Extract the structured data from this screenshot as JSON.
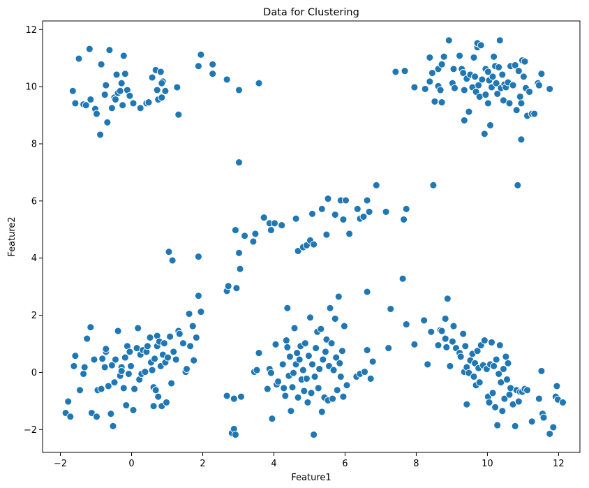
{
  "chart_data": {
    "type": "scatter",
    "title": "Data for Clustering",
    "xlabel": "Feature1",
    "ylabel": "Feature2",
    "xlim": [
      -2.5,
      12.6
    ],
    "ylim": [
      -2.8,
      12.3
    ],
    "xticks": [
      -2,
      0,
      2,
      4,
      6,
      8,
      10,
      12
    ],
    "yticks": [
      -2,
      0,
      2,
      4,
      6,
      8,
      10,
      12
    ],
    "xtick_labels": [
      "−2",
      "0",
      "2",
      "4",
      "6",
      "8",
      "10",
      "12"
    ],
    "ytick_labels": [
      "−2",
      "0",
      "2",
      "4",
      "6",
      "8",
      "10",
      "12"
    ],
    "grid": false,
    "legend": "none",
    "marker_color": "#1f77b4",
    "marker_edge_color": "#ffffff",
    "points": [
      [
        -1.65,
        9.85
      ],
      [
        -1.58,
        9.42
      ],
      [
        -1.48,
        10.98
      ],
      [
        -1.35,
        9.38
      ],
      [
        -1.28,
        9.35
      ],
      [
        -1.18,
        11.32
      ],
      [
        -1.15,
        9.55
      ],
      [
        -1.02,
        9.22
      ],
      [
        -0.98,
        9.05
      ],
      [
        -0.85,
        10.78
      ],
      [
        -0.88,
        8.32
      ],
      [
        -0.75,
        9.72
      ],
      [
        -0.72,
        10.05
      ],
      [
        -0.68,
        8.75
      ],
      [
        -0.62,
        11.28
      ],
      [
        -0.55,
        9.25
      ],
      [
        -0.48,
        9.62
      ],
      [
        -0.45,
        9.55
      ],
      [
        -0.42,
        10.42
      ],
      [
        -0.38,
        9.78
      ],
      [
        -0.32,
        9.85
      ],
      [
        -0.28,
        10.12
      ],
      [
        -0.22,
        11.08
      ],
      [
        -0.25,
        9.35
      ],
      [
        -0.18,
        10.45
      ],
      [
        -0.12,
        9.88
      ],
      [
        -0.05,
        9.68
      ],
      [
        0.05,
        9.42
      ],
      [
        0.25,
        9.25
      ],
      [
        0.42,
        9.42
      ],
      [
        0.48,
        9.45
      ],
      [
        0.58,
        10.32
      ],
      [
        0.68,
        10.58
      ],
      [
        0.72,
        9.88
      ],
      [
        0.75,
        9.55
      ],
      [
        0.82,
        10.52
      ],
      [
        0.85,
        9.62
      ],
      [
        0.88,
        10.18
      ],
      [
        0.95,
        9.85
      ],
      [
        0.85,
        10.12
      ],
      [
        1.28,
        9.98
      ],
      [
        1.32,
        9.02
      ],
      [
        1.88,
        10.72
      ],
      [
        1.95,
        11.12
      ],
      [
        2.28,
        10.78
      ],
      [
        2.28,
        10.45
      ],
      [
        2.68,
        10.25
      ],
      [
        3.02,
        9.88
      ],
      [
        3.58,
        10.12
      ],
      [
        3.02,
        7.35
      ],
      [
        7.42,
        10.52
      ],
      [
        7.68,
        10.55
      ],
      [
        7.95,
        9.98
      ],
      [
        8.25,
        9.92
      ],
      [
        8.38,
        10.18
      ],
      [
        8.45,
        10.48
      ],
      [
        8.52,
        9.48
      ],
      [
        8.62,
        10.02
      ],
      [
        8.68,
        9.88
      ],
      [
        8.72,
        9.45
      ],
      [
        8.38,
        11.02
      ],
      [
        8.62,
        10.62
      ],
      [
        8.72,
        10.78
      ],
      [
        8.78,
        11.05
      ],
      [
        8.92,
        11.62
      ],
      [
        9.02,
        10.12
      ],
      [
        9.05,
        10.62
      ],
      [
        9.08,
        9.95
      ],
      [
        9.22,
        11.08
      ],
      [
        9.28,
        10.62
      ],
      [
        9.32,
        10.48
      ],
      [
        9.35,
        8.82
      ],
      [
        9.35,
        9.88
      ],
      [
        9.42,
        10.28
      ],
      [
        9.48,
        9.12
      ],
      [
        9.52,
        10.42
      ],
      [
        9.58,
        9.98
      ],
      [
        9.62,
        11.02
      ],
      [
        9.65,
        10.35
      ],
      [
        9.68,
        9.82
      ],
      [
        9.72,
        11.38
      ],
      [
        9.72,
        11.52
      ],
      [
        9.75,
        10.05
      ],
      [
        9.78,
        9.65
      ],
      [
        9.82,
        11.45
      ],
      [
        9.85,
        10.25
      ],
      [
        9.92,
        8.35
      ],
      [
        9.95,
        10.62
      ],
      [
        9.95,
        9.72
      ],
      [
        10.02,
        10.52
      ],
      [
        10.02,
        9.42
      ],
      [
        10.05,
        10.22
      ],
      [
        10.08,
        8.65
      ],
      [
        10.12,
        9.98
      ],
      [
        10.15,
        10.35
      ],
      [
        10.18,
        11.05
      ],
      [
        10.22,
        10.72
      ],
      [
        10.25,
        10.12
      ],
      [
        10.28,
        9.75
      ],
      [
        10.32,
        10.68
      ],
      [
        10.35,
        11.62
      ],
      [
        10.38,
        9.95
      ],
      [
        10.42,
        10.42
      ],
      [
        10.45,
        9.52
      ],
      [
        10.48,
        10.08
      ],
      [
        10.52,
        9.98
      ],
      [
        10.58,
        10.15
      ],
      [
        10.62,
        9.42
      ],
      [
        10.65,
        10.72
      ],
      [
        10.72,
        10.05
      ],
      [
        10.78,
        10.75
      ],
      [
        10.82,
        9.18
      ],
      [
        10.88,
        10.55
      ],
      [
        10.92,
        9.65
      ],
      [
        10.95,
        9.42
      ],
      [
        10.98,
        10.92
      ],
      [
        11.02,
        10.35
      ],
      [
        11.05,
        10.88
      ],
      [
        11.08,
        9.95
      ],
      [
        11.12,
        8.98
      ],
      [
        11.18,
        9.82
      ],
      [
        11.25,
        9.05
      ],
      [
        11.32,
        9.05
      ],
      [
        11.42,
        10.12
      ],
      [
        11.45,
        10.05
      ],
      [
        11.52,
        10.45
      ],
      [
        11.75,
        9.92
      ],
      [
        10.95,
        8.15
      ],
      [
        10.85,
        6.55
      ],
      [
        8.48,
        6.55
      ],
      [
        1.05,
        4.22
      ],
      [
        1.15,
        3.92
      ],
      [
        1.88,
        4.05
      ],
      [
        2.68,
        2.85
      ],
      [
        2.72,
        3.02
      ],
      [
        2.92,
        4.98
      ],
      [
        3.02,
        4.18
      ],
      [
        3.05,
        3.62
      ],
      [
        3.18,
        4.78
      ],
      [
        3.42,
        4.58
      ],
      [
        3.48,
        4.85
      ],
      [
        3.72,
        5.42
      ],
      [
        3.88,
        5.22
      ],
      [
        3.92,
        4.98
      ],
      [
        4.02,
        5.22
      ],
      [
        4.22,
        5.15
      ],
      [
        4.62,
        5.38
      ],
      [
        4.68,
        4.25
      ],
      [
        4.82,
        4.38
      ],
      [
        4.92,
        4.45
      ],
      [
        5.02,
        4.62
      ],
      [
        5.12,
        4.48
      ],
      [
        5.08,
        5.55
      ],
      [
        5.35,
        5.72
      ],
      [
        5.48,
        4.82
      ],
      [
        5.52,
        6.08
      ],
      [
        5.72,
        5.52
      ],
      [
        5.88,
        6.02
      ],
      [
        5.95,
        5.35
      ],
      [
        6.02,
        6.02
      ],
      [
        6.12,
        4.85
      ],
      [
        6.35,
        5.72
      ],
      [
        6.42,
        5.38
      ],
      [
        6.52,
        5.45
      ],
      [
        6.62,
        6.02
      ],
      [
        6.68,
        5.62
      ],
      [
        6.88,
        6.55
      ],
      [
        7.15,
        5.62
      ],
      [
        7.65,
        5.35
      ],
      [
        7.72,
        5.72
      ],
      [
        -1.85,
        -1.42
      ],
      [
        -1.78,
        -1.02
      ],
      [
        -1.72,
        -1.55
      ],
      [
        -1.62,
        0.22
      ],
      [
        -1.58,
        0.58
      ],
      [
        -1.45,
        -0.62
      ],
      [
        -1.35,
        -0.05
      ],
      [
        -1.32,
        0.18
      ],
      [
        -1.25,
        1.18
      ],
      [
        -1.15,
        1.58
      ],
      [
        -1.12,
        -1.42
      ],
      [
        -1.05,
        0.45
      ],
      [
        -0.98,
        -1.55
      ],
      [
        -0.95,
        -0.62
      ],
      [
        -0.85,
        -0.58
      ],
      [
        -0.82,
        0.48
      ],
      [
        -0.75,
        0.18
      ],
      [
        -0.72,
        0.72
      ],
      [
        -0.72,
        0.82
      ],
      [
        -0.65,
        -0.48
      ],
      [
        -0.58,
        -1.45
      ],
      [
        -0.55,
        0.25
      ],
      [
        -0.52,
        -1.88
      ],
      [
        -0.48,
        -0.35
      ],
      [
        -0.45,
        0.45
      ],
      [
        -0.38,
        1.45
      ],
      [
        -0.32,
        -0.12
      ],
      [
        -0.28,
        0.18
      ],
      [
        -0.28,
        0.05
      ],
      [
        -0.22,
        -0.55
      ],
      [
        -0.18,
        0.52
      ],
      [
        -0.15,
        -1.15
      ],
      [
        -0.12,
        0.92
      ],
      [
        -0.08,
        -0.05
      ],
      [
        -0.05,
        0.72
      ],
      [
        -0.02,
        0.22
      ],
      [
        0.05,
        -1.32
      ],
      [
        0.08,
        -0.58
      ],
      [
        0.15,
        0.85
      ],
      [
        0.18,
        1.55
      ],
      [
        0.22,
        -0.25
      ],
      [
        0.25,
        0.62
      ],
      [
        0.28,
        -0.05
      ],
      [
        0.32,
        0.78
      ],
      [
        0.38,
        0.02
      ],
      [
        0.42,
        0.72
      ],
      [
        0.45,
        0.92
      ],
      [
        0.52,
        1.22
      ],
      [
        0.55,
        0.35
      ],
      [
        0.58,
        0.08
      ],
      [
        0.62,
        -0.52
      ],
      [
        0.62,
        -1.18
      ],
      [
        0.65,
        0.48
      ],
      [
        0.68,
        -0.62
      ],
      [
        0.72,
        0.92
      ],
      [
        0.72,
        1.28
      ],
      [
        0.75,
        -0.85
      ],
      [
        0.78,
        1.08
      ],
      [
        0.82,
        0.22
      ],
      [
        0.85,
        -1.18
      ],
      [
        0.88,
        0.62
      ],
      [
        0.92,
        1.02
      ],
      [
        0.95,
        0.35
      ],
      [
        0.98,
        -1.05
      ],
      [
        1.02,
        0.52
      ],
      [
        1.08,
        1.25
      ],
      [
        1.12,
        -0.38
      ],
      [
        1.18,
        0.72
      ],
      [
        1.25,
        0.45
      ],
      [
        1.32,
        1.45
      ],
      [
        1.35,
        1.35
      ],
      [
        1.45,
        1.02
      ],
      [
        1.52,
        0.02
      ],
      [
        1.55,
        0.12
      ],
      [
        1.62,
        2.05
      ],
      [
        1.65,
        0.92
      ],
      [
        1.72,
        1.62
      ],
      [
        1.75,
        0.42
      ],
      [
        1.82,
        1.22
      ],
      [
        1.88,
        2.68
      ],
      [
        1.95,
        2.12
      ],
      [
        2.68,
        -0.82
      ],
      [
        2.82,
        -2.12
      ],
      [
        2.88,
        -0.92
      ],
      [
        2.88,
        -1.98
      ],
      [
        2.92,
        -2.18
      ],
      [
        2.95,
        2.95
      ],
      [
        3.08,
        -0.85
      ],
      [
        3.45,
        0.02
      ],
      [
        3.52,
        0.08
      ],
      [
        3.58,
        0.68
      ],
      [
        3.82,
        -0.58
      ],
      [
        3.88,
        0.12
      ],
      [
        3.92,
        -0.02
      ],
      [
        3.95,
        -1.62
      ],
      [
        4.05,
        0.98
      ],
      [
        4.08,
        -0.42
      ],
      [
        4.12,
        -0.32
      ],
      [
        4.25,
        0.28
      ],
      [
        4.28,
        -0.55
      ],
      [
        4.32,
        -0.82
      ],
      [
        4.35,
        1.12
      ],
      [
        4.38,
        0.88
      ],
      [
        4.38,
        2.25
      ],
      [
        4.42,
        -0.12
      ],
      [
        4.45,
        0.55
      ],
      [
        4.48,
        -1.35
      ],
      [
        4.52,
        -0.52
      ],
      [
        4.55,
        -0.02
      ],
      [
        4.58,
        1.55
      ],
      [
        4.62,
        0.28
      ],
      [
        4.65,
        0.68
      ],
      [
        4.68,
        -0.88
      ],
      [
        4.72,
        0.45
      ],
      [
        4.75,
        0.92
      ],
      [
        4.78,
        -0.25
      ],
      [
        4.82,
        0.08
      ],
      [
        4.85,
        -0.65
      ],
      [
        4.88,
        1.02
      ],
      [
        4.92,
        -0.22
      ],
      [
        4.95,
        -1.05
      ],
      [
        4.98,
        0.58
      ],
      [
        5.02,
        1.92
      ],
      [
        5.05,
        -0.72
      ],
      [
        5.08,
        0.28
      ],
      [
        5.12,
        -2.18
      ],
      [
        5.15,
        -0.15
      ],
      [
        5.18,
        0.85
      ],
      [
        5.22,
        1.42
      ],
      [
        5.25,
        -0.55
      ],
      [
        5.28,
        0.12
      ],
      [
        5.32,
        1.52
      ],
      [
        5.35,
        -1.38
      ],
      [
        5.38,
        0.45
      ],
      [
        5.42,
        -0.88
      ],
      [
        5.45,
        0.72
      ],
      [
        5.48,
        1.15
      ],
      [
        5.52,
        -0.98
      ],
      [
        5.55,
        0.22
      ],
      [
        5.58,
        2.25
      ],
      [
        5.62,
        1.02
      ],
      [
        5.65,
        -0.92
      ],
      [
        5.68,
        0.08
      ],
      [
        5.72,
        1.88
      ],
      [
        5.75,
        0.52
      ],
      [
        5.78,
        -0.62
      ],
      [
        5.82,
        2.65
      ],
      [
        5.85,
        0.32
      ],
      [
        5.88,
        -0.15
      ],
      [
        5.92,
        0.75
      ],
      [
        5.95,
        -0.85
      ],
      [
        5.98,
        1.62
      ],
      [
        6.05,
        -0.45
      ],
      [
        6.32,
        -0.15
      ],
      [
        6.42,
        -0.05
      ],
      [
        6.55,
        0.02
      ],
      [
        6.62,
        0.78
      ],
      [
        6.72,
        -0.22
      ],
      [
        6.78,
        0.38
      ],
      [
        6.62,
        2.82
      ],
      [
        7.22,
        0.85
      ],
      [
        7.28,
        2.22
      ],
      [
        7.62,
        3.28
      ],
      [
        7.72,
        1.68
      ],
      [
        7.95,
        0.98
      ],
      [
        8.22,
        1.82
      ],
      [
        8.32,
        0.28
      ],
      [
        8.42,
        1.42
      ],
      [
        8.62,
        0.95
      ],
      [
        8.68,
        1.48
      ],
      [
        8.72,
        1.45
      ],
      [
        8.82,
        1.18
      ],
      [
        8.85,
        0.88
      ],
      [
        8.82,
        1.88
      ],
      [
        8.88,
        2.58
      ],
      [
        8.95,
        0.22
      ],
      [
        9.02,
        1.08
      ],
      [
        9.05,
        1.62
      ],
      [
        9.12,
        0.85
      ],
      [
        9.22,
        0.68
      ],
      [
        9.25,
        0.55
      ],
      [
        9.32,
        1.35
      ],
      [
        9.35,
        0.02
      ],
      [
        9.38,
        0.92
      ],
      [
        9.42,
        0.18
      ],
      [
        9.42,
        -1.12
      ],
      [
        9.48,
        -0.02
      ],
      [
        9.52,
        0.42
      ],
      [
        9.58,
        0.65
      ],
      [
        9.62,
        -0.15
      ],
      [
        9.65,
        0.32
      ],
      [
        9.68,
        -0.45
      ],
      [
        9.72,
        0.75
      ],
      [
        9.75,
        0.15
      ],
      [
        9.78,
        -0.35
      ],
      [
        9.82,
        0.95
      ],
      [
        9.88,
        0.25
      ],
      [
        9.92,
        1.12
      ],
      [
        9.98,
        0.12
      ],
      [
        10.02,
        -0.85
      ],
      [
        10.05,
        -1.05
      ],
      [
        10.08,
        0.28
      ],
      [
        10.12,
        1.05
      ],
      [
        10.15,
        -0.72
      ],
      [
        10.18,
        0.22
      ],
      [
        10.22,
        -1.22
      ],
      [
        10.25,
        0.45
      ],
      [
        10.28,
        -1.85
      ],
      [
        10.32,
        -0.05
      ],
      [
        10.35,
        0.95
      ],
      [
        10.38,
        -0.35
      ],
      [
        10.42,
        -1.35
      ],
      [
        10.45,
        0.12
      ],
      [
        10.48,
        -0.92
      ],
      [
        10.52,
        0.55
      ],
      [
        10.55,
        -0.25
      ],
      [
        10.58,
        0.32
      ],
      [
        10.62,
        -0.78
      ],
      [
        10.65,
        -0.55
      ],
      [
        10.72,
        -1.12
      ],
      [
        10.78,
        -1.88
      ],
      [
        10.82,
        -0.62
      ],
      [
        10.88,
        -1.02
      ],
      [
        10.92,
        -0.68
      ],
      [
        10.98,
        -0.68
      ],
      [
        11.05,
        -0.58
      ],
      [
        11.12,
        -0.62
      ],
      [
        11.25,
        -1.72
      ],
      [
        11.45,
        -0.92
      ],
      [
        11.52,
        0.05
      ],
      [
        11.55,
        -1.45
      ],
      [
        11.58,
        -1.58
      ],
      [
        11.75,
        -2.15
      ],
      [
        11.85,
        -1.92
      ],
      [
        11.92,
        -0.85
      ],
      [
        11.95,
        -0.48
      ],
      [
        11.98,
        -0.95
      ],
      [
        12.12,
        -1.05
      ]
    ]
  }
}
